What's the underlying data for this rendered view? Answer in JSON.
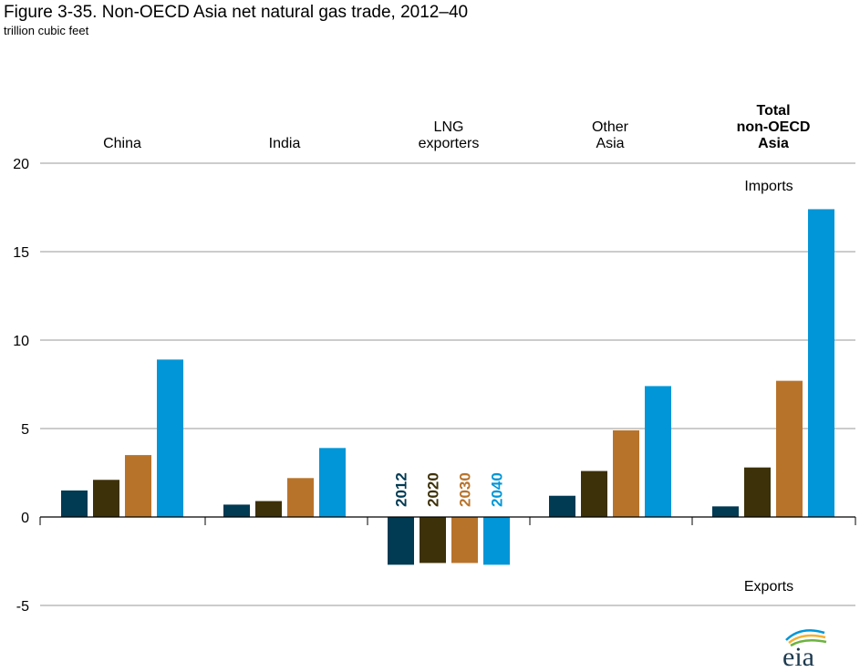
{
  "title": "Figure 3-35. Non-OECD Asia net natural gas trade, 2012–40",
  "units": "trillion cubic feet",
  "logo_text": "eia",
  "chart_data": {
    "type": "bar",
    "categories": [
      "China",
      "India",
      "LNG exporters",
      "Other Asia",
      "Total non-OECD Asia"
    ],
    "category_labels": [
      [
        "China"
      ],
      [
        "India"
      ],
      [
        "LNG",
        "exporters"
      ],
      [
        "Other",
        "Asia"
      ],
      [
        "Total",
        "non-OECD",
        "Asia"
      ]
    ],
    "bold_category": 4,
    "series": [
      {
        "name": "2012",
        "color": "#003a53",
        "values": [
          1.5,
          0.7,
          -2.7,
          1.2,
          0.6
        ]
      },
      {
        "name": "2020",
        "color": "#3d3109",
        "values": [
          2.1,
          0.9,
          -2.6,
          2.6,
          2.8
        ]
      },
      {
        "name": "2030",
        "color": "#b8732b",
        "values": [
          3.5,
          2.2,
          -2.6,
          4.9,
          7.7
        ]
      },
      {
        "name": "2040",
        "color": "#0096d7",
        "values": [
          8.9,
          3.9,
          -2.7,
          7.4,
          17.4
        ]
      }
    ],
    "legend_placement": "inside LNG exporters group, rotated year labels",
    "annotations": [
      "Imports",
      "Exports"
    ],
    "yticks": [
      20,
      15,
      10,
      5,
      0,
      -5
    ],
    "ylim": [
      -5,
      20
    ],
    "grid": true
  }
}
